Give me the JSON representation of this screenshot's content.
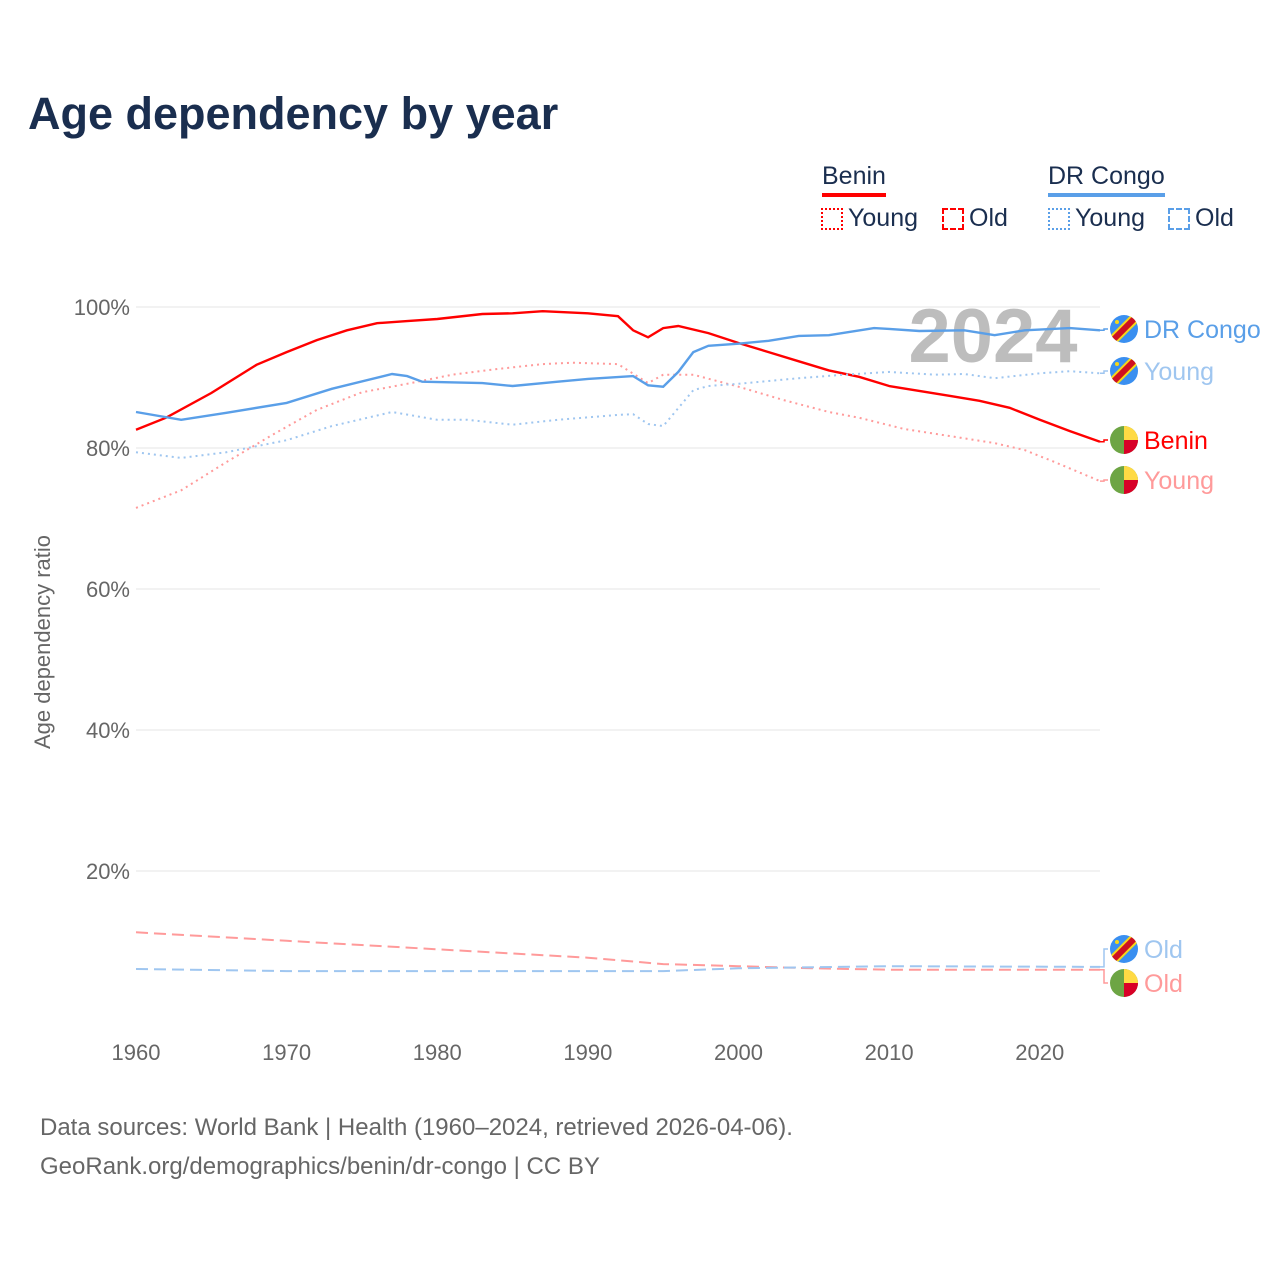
{
  "title": "Age dependency by year",
  "legend": {
    "countries": [
      {
        "name": "Benin",
        "color": "#ff0000",
        "light": "#ff9a9a",
        "items": [
          "Young",
          "Old"
        ]
      },
      {
        "name": "DR Congo",
        "color": "#5a9fe8",
        "light": "#9fc6f0",
        "items": [
          "Young",
          "Old"
        ]
      }
    ]
  },
  "year_watermark": "2024",
  "source": {
    "line1": "Data sources: World Bank | Health (1960–2024, retrieved 2026-04-06).",
    "line2": "GeoRank.org/demographics/benin/dr-congo | CC BY"
  },
  "chart_data": {
    "type": "line",
    "title": "Age dependency by year",
    "xlabel": "",
    "ylabel": "Age dependency ratio",
    "xlim": [
      1960,
      2024
    ],
    "ylim": [
      0,
      100
    ],
    "x_ticks": [
      "1960",
      "1970",
      "1980",
      "1990",
      "2000",
      "2010",
      "2020"
    ],
    "y_ticks": [
      "20%",
      "40%",
      "60%",
      "80%",
      "100%"
    ],
    "grid": true,
    "series": [
      {
        "name": "Benin",
        "label": "Benin",
        "style": "solid",
        "color": "#ff0000",
        "x": [
          1960,
          1962,
          1965,
          1968,
          1970,
          1972,
          1974,
          1976,
          1978,
          1980,
          1983,
          1985,
          1987,
          1990,
          1992,
          1993,
          1994,
          1995,
          1996,
          1998,
          2000,
          2002,
          2004,
          2006,
          2008,
          2010,
          2012,
          2014,
          2016,
          2018,
          2020,
          2022,
          2024
        ],
        "y": [
          82.6,
          84.3,
          87.8,
          91.8,
          93.6,
          95.3,
          96.7,
          97.7,
          98.0,
          98.3,
          99.0,
          99.1,
          99.4,
          99.1,
          98.7,
          96.7,
          95.7,
          97.0,
          97.3,
          96.3,
          94.9,
          93.6,
          92.3,
          91.0,
          90.1,
          88.8,
          88.1,
          87.4,
          86.7,
          85.7,
          84.0,
          82.4,
          80.9
        ]
      },
      {
        "name": "Benin Young",
        "label": "Young",
        "style": "dotted",
        "color": "#ff9a9a",
        "x": [
          1960,
          1963,
          1966,
          1969,
          1972,
          1975,
          1978,
          1981,
          1984,
          1987,
          1989,
          1992,
          1994,
          1995,
          1997,
          2000,
          2003,
          2006,
          2008,
          2011,
          2014,
          2017,
          2019,
          2021,
          2024
        ],
        "y": [
          71.5,
          74.0,
          78.0,
          81.8,
          85.4,
          87.9,
          89.1,
          90.4,
          91.2,
          91.9,
          92.1,
          91.9,
          89.2,
          90.4,
          90.4,
          88.7,
          86.8,
          85.1,
          84.3,
          82.7,
          81.7,
          80.7,
          79.7,
          78.0,
          75.3
        ]
      },
      {
        "name": "DR Congo",
        "label": "DR Congo",
        "style": "solid",
        "color": "#5a9fe8",
        "x": [
          1960,
          1963,
          1966,
          1970,
          1973,
          1977,
          1978,
          1979,
          1983,
          1985,
          1988,
          1990,
          1993,
          1994,
          1995,
          1996,
          1997,
          1998,
          2000,
          2002,
          2004,
          2006,
          2009,
          2010,
          2012,
          2015,
          2017,
          2019,
          2022,
          2024
        ],
        "y": [
          85.1,
          84.0,
          85.0,
          86.4,
          88.4,
          90.5,
          90.2,
          89.4,
          89.2,
          88.8,
          89.4,
          89.8,
          90.2,
          88.9,
          88.7,
          90.8,
          93.6,
          94.5,
          94.8,
          95.2,
          95.9,
          96.0,
          97.0,
          96.9,
          96.6,
          96.7,
          96.0,
          96.7,
          97.0,
          96.7
        ]
      },
      {
        "name": "DR Congo Young",
        "label": "Young",
        "style": "dotted",
        "color": "#9fc6f0",
        "x": [
          1960,
          1963,
          1966,
          1970,
          1973,
          1977,
          1980,
          1982,
          1985,
          1988,
          1992,
          1993,
          1994,
          1995,
          1997,
          1998,
          2000,
          2004,
          2007,
          2010,
          2013,
          2015,
          2017,
          2020,
          2022,
          2024
        ],
        "y": [
          79.4,
          78.6,
          79.4,
          81.1,
          83.1,
          85.1,
          84.0,
          84.0,
          83.3,
          84.0,
          84.7,
          84.8,
          83.4,
          83.1,
          88.2,
          88.8,
          89.1,
          89.9,
          90.4,
          90.8,
          90.4,
          90.5,
          89.9,
          90.6,
          90.9,
          90.6
        ]
      },
      {
        "name": "Benin Old",
        "label": "Old",
        "style": "dashed",
        "color": "#ff9a9a",
        "x": [
          1960,
          1970,
          1980,
          1990,
          1995,
          2000,
          2005,
          2010,
          2024
        ],
        "y": [
          11.3,
          10.1,
          8.9,
          7.7,
          6.8,
          6.5,
          6.2,
          6.0,
          6.0
        ]
      },
      {
        "name": "DR Congo Old",
        "label": "Old",
        "style": "dashed",
        "color": "#9fc6f0",
        "x": [
          1960,
          1970,
          1980,
          1995,
          2000,
          2010,
          2024
        ],
        "y": [
          6.1,
          5.8,
          5.8,
          5.8,
          6.2,
          6.5,
          6.4
        ]
      }
    ]
  }
}
